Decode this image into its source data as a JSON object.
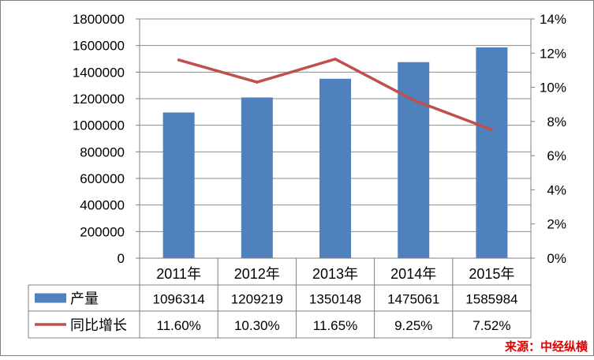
{
  "chart_data": {
    "type": "bar",
    "categories": [
      "2011年",
      "2012年",
      "2013年",
      "2014年",
      "2015年"
    ],
    "series": [
      {
        "name": "产量",
        "type": "bar",
        "axis": "left",
        "color": "#4F81BD",
        "values": [
          1096314,
          1209219,
          1350148,
          1475061,
          1585984
        ]
      },
      {
        "name": "同比增长",
        "type": "line",
        "axis": "right",
        "color": "#C0504D",
        "values": [
          11.6,
          10.3,
          11.65,
          9.25,
          7.52
        ]
      }
    ],
    "y_left": {
      "min": 0,
      "max": 1800000,
      "ticks": [
        "0",
        "200000",
        "400000",
        "600000",
        "800000",
        "1000000",
        "1200000",
        "1400000",
        "1600000",
        "1800000"
      ]
    },
    "y_right": {
      "min": 0,
      "max": 14,
      "ticks": [
        "0%",
        "2%",
        "4%",
        "6%",
        "8%",
        "10%",
        "12%",
        "14%"
      ]
    },
    "data_table": {
      "rows": [
        {
          "label": "产量",
          "cells": [
            "1096314",
            "1209219",
            "1350148",
            "1475061",
            "1585984"
          ]
        },
        {
          "label": "同比增长",
          "cells": [
            "11.60%",
            "10.30%",
            "11.65%",
            "9.25%",
            "7.52%"
          ]
        }
      ]
    },
    "grid": true,
    "legend_placement": "data-table-left",
    "source_note": "来源：中经纵横",
    "colors": {
      "bar": "#4F81BD",
      "line": "#C0504D",
      "source": "#E00000",
      "grid": "#808080"
    }
  }
}
